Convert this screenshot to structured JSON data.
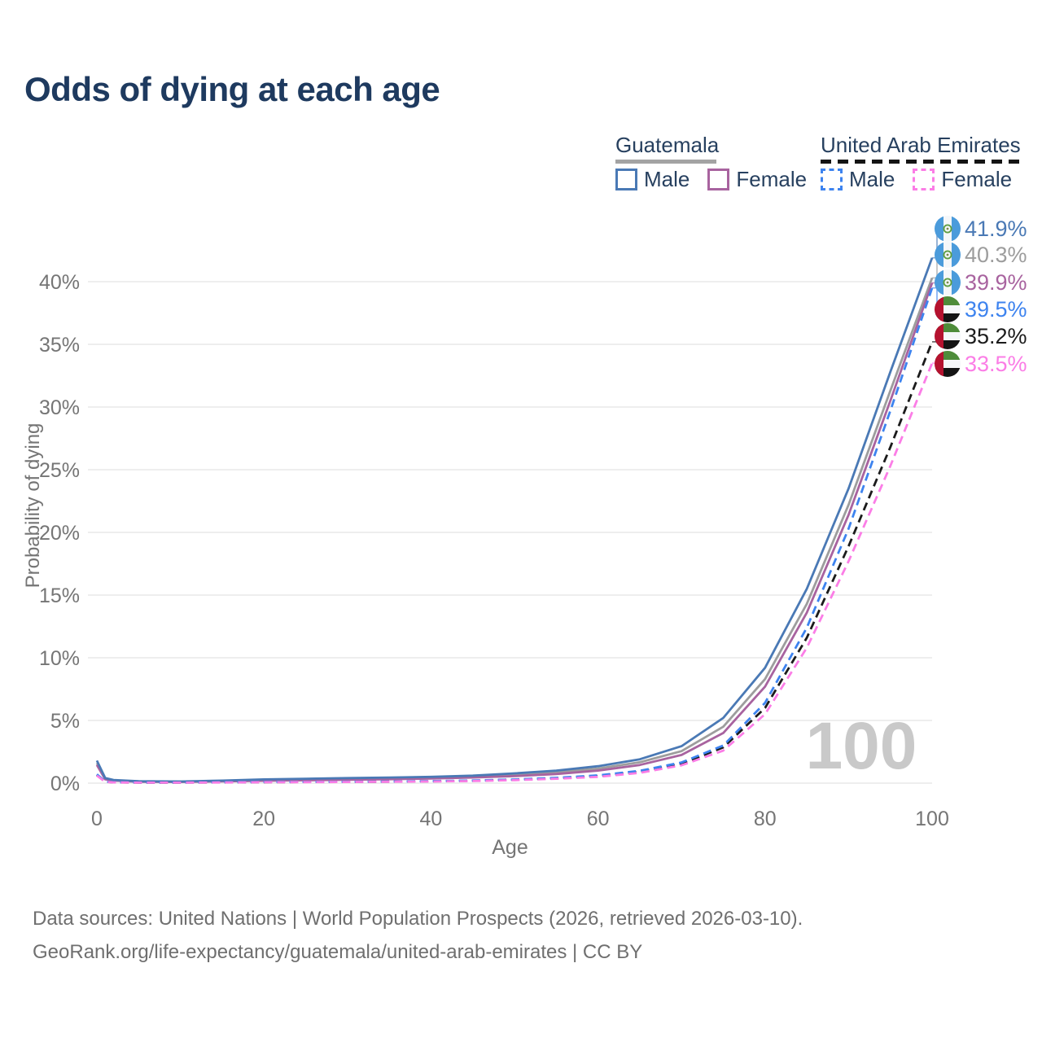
{
  "title": "Odds of dying at each age",
  "colors": {
    "title_text": "#1e3a5f",
    "legend_text": "#27405f",
    "axis_text": "#757575",
    "grid": "#e9e9e9",
    "watermark": "#c9c9c9",
    "footer_text": "#6f6f6f",
    "guatemala_underline": "#a3a3a3",
    "uae_underline": "#141414",
    "gt_male": "#4a79b5",
    "gt_both": "#9d9d9d",
    "gt_female": "#a8639f",
    "uae_male": "#3d83ef",
    "uae_both": "#1b1b1b",
    "uae_female": "#fb7de6"
  },
  "legend": {
    "groups": [
      {
        "country": "Guatemala",
        "line_style": "solid",
        "underline_color_key": "guatemala_underline",
        "items": [
          {
            "label": "Male",
            "color_key": "gt_male",
            "dashed": false
          },
          {
            "label": "Female",
            "color_key": "gt_female",
            "dashed": false
          }
        ]
      },
      {
        "country": "United Arab Emirates",
        "line_style": "dashed",
        "underline_color_key": "uae_underline",
        "items": [
          {
            "label": "Male",
            "color_key": "uae_male",
            "dashed": true
          },
          {
            "label": "Female",
            "color_key": "uae_female",
            "dashed": true
          }
        ]
      }
    ]
  },
  "chart_data": {
    "type": "line",
    "title": "Odds of dying at each age",
    "xlabel": "Age",
    "ylabel": "Probability of dying",
    "xlim": [
      0,
      100
    ],
    "ylim": [
      0,
      44
    ],
    "grid": true,
    "legend_position": "top-right",
    "age_counter": "100",
    "x": [
      0,
      1,
      2,
      5,
      10,
      15,
      20,
      25,
      30,
      35,
      40,
      45,
      50,
      55,
      60,
      65,
      70,
      75,
      80,
      85,
      90,
      95,
      100
    ],
    "xticks": [
      {
        "v": 0,
        "label": "0"
      },
      {
        "v": 20,
        "label": "20"
      },
      {
        "v": 40,
        "label": "40"
      },
      {
        "v": 60,
        "label": "60"
      },
      {
        "v": 80,
        "label": "80"
      },
      {
        "v": 100,
        "label": "100"
      }
    ],
    "yticks": [
      {
        "v": 0,
        "label": "0%"
      },
      {
        "v": 5,
        "label": "5%"
      },
      {
        "v": 10,
        "label": "10%"
      },
      {
        "v": 15,
        "label": "15%"
      },
      {
        "v": 20,
        "label": "20%"
      },
      {
        "v": 25,
        "label": "25%"
      },
      {
        "v": 30,
        "label": "30%"
      },
      {
        "v": 35,
        "label": "35%"
      },
      {
        "v": 40,
        "label": "40%"
      }
    ],
    "series": [
      {
        "name": "Guatemala Male",
        "country": "Guatemala",
        "sex": "Male",
        "color_key": "gt_male",
        "dashed": false,
        "flag_icon": "guatemala-flag-icon",
        "end_label": "41.9%",
        "values": [
          1.8,
          0.4,
          0.25,
          0.15,
          0.13,
          0.2,
          0.3,
          0.35,
          0.4,
          0.45,
          0.5,
          0.6,
          0.78,
          1.0,
          1.35,
          1.9,
          2.95,
          5.2,
          9.2,
          15.5,
          23.5,
          32.8,
          41.9
        ]
      },
      {
        "name": "Guatemala Both sexes",
        "country": "Guatemala",
        "sex": "Both",
        "color_key": "gt_both",
        "dashed": false,
        "flag_icon": "guatemala-flag-icon",
        "end_label": "40.3%",
        "values": [
          1.6,
          0.35,
          0.22,
          0.13,
          0.11,
          0.17,
          0.25,
          0.29,
          0.33,
          0.38,
          0.43,
          0.52,
          0.66,
          0.86,
          1.16,
          1.66,
          2.55,
          4.5,
          8.3,
          14.3,
          22.2,
          31.3,
          40.3
        ]
      },
      {
        "name": "Guatemala Female",
        "country": "Guatemala",
        "sex": "Female",
        "color_key": "gt_female",
        "dashed": false,
        "flag_icon": "guatemala-flag-icon",
        "end_label": "39.9%",
        "values": [
          1.45,
          0.3,
          0.2,
          0.11,
          0.1,
          0.14,
          0.19,
          0.23,
          0.27,
          0.31,
          0.37,
          0.45,
          0.56,
          0.73,
          1.0,
          1.45,
          2.25,
          4.0,
          7.7,
          13.6,
          21.4,
          30.5,
          39.9
        ]
      },
      {
        "name": "United Arab Emirates Male",
        "country": "United Arab Emirates",
        "sex": "Male",
        "color_key": "uae_male",
        "dashed": true,
        "flag_icon": "uae-flag-icon",
        "end_label": "39.5%",
        "values": [
          0.7,
          0.12,
          0.07,
          0.05,
          0.05,
          0.07,
          0.09,
          0.1,
          0.11,
          0.13,
          0.16,
          0.21,
          0.29,
          0.42,
          0.62,
          0.98,
          1.65,
          3.0,
          6.4,
          12.4,
          20.3,
          29.7,
          39.5
        ]
      },
      {
        "name": "United Arab Emirates Both sexes",
        "country": "United Arab Emirates",
        "sex": "Both",
        "color_key": "uae_both",
        "dashed": true,
        "flag_icon": "uae-flag-icon",
        "end_label": "35.2%",
        "values": [
          0.65,
          0.11,
          0.06,
          0.045,
          0.045,
          0.06,
          0.08,
          0.09,
          0.1,
          0.12,
          0.15,
          0.19,
          0.27,
          0.39,
          0.57,
          0.9,
          1.55,
          2.85,
          6.0,
          11.6,
          18.9,
          26.8,
          35.2
        ]
      },
      {
        "name": "United Arab Emirates Female",
        "country": "United Arab Emirates",
        "sex": "Female",
        "color_key": "uae_female",
        "dashed": true,
        "flag_icon": "uae-flag-icon",
        "end_label": "33.5%",
        "values": [
          0.6,
          0.1,
          0.06,
          0.04,
          0.04,
          0.05,
          0.07,
          0.08,
          0.09,
          0.11,
          0.13,
          0.17,
          0.24,
          0.35,
          0.5,
          0.82,
          1.42,
          2.6,
          5.5,
          10.8,
          17.7,
          25.3,
          33.5
        ]
      }
    ]
  },
  "footer": {
    "line1": "Data sources: United Nations | World Population Prospects (2026, retrieved 2026-03-10).",
    "line2": "GeoRank.org/life-expectancy/guatemala/united-arab-emirates | CC BY"
  }
}
